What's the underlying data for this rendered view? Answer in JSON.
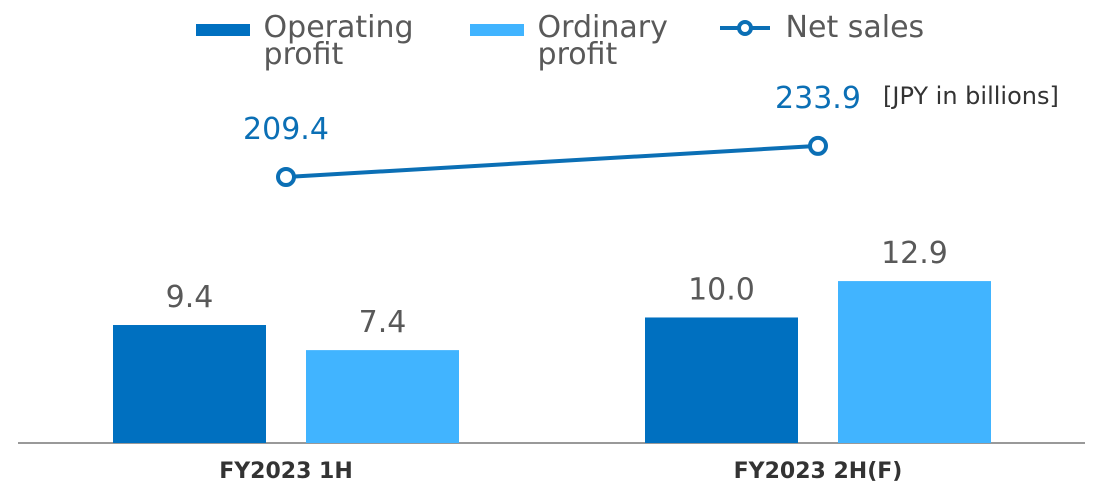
{
  "chart_data": {
    "type": "bar_line",
    "annotation": "[JPY in billions]",
    "categories": [
      "FY2023 1H",
      "FY2023 2H(F)"
    ],
    "ylim": [
      0,
      33.7
    ],
    "y2lim": [
      0,
      333
    ],
    "series": [
      {
        "name": "Operating profit",
        "type": "bar",
        "color": "#0070c0",
        "values": [
          9.4,
          10.0
        ],
        "value_labels": [
          "9.4",
          "10.0"
        ]
      },
      {
        "name": "Ordinary profit",
        "type": "bar",
        "color": "#41b4ff",
        "values": [
          7.4,
          12.9
        ],
        "value_labels": [
          "7.4",
          "12.9"
        ]
      },
      {
        "name": "Net sales",
        "type": "line",
        "axis": "y2",
        "color": "#0b6fb5",
        "values": [
          209.4,
          233.9
        ],
        "value_labels": [
          "209.4",
          "233.9"
        ]
      }
    ]
  }
}
